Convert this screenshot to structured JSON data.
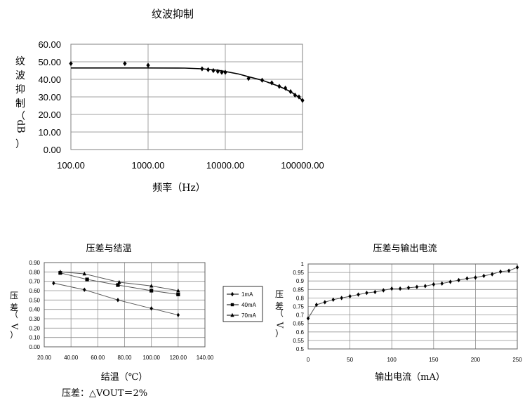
{
  "chart_data": [
    {
      "type": "scatter",
      "title": "纹波抑制",
      "ylabel": "纹波抑制（dB）",
      "xlabel": "频率（Hz）",
      "x_scale": "log",
      "xlim": [
        100,
        100000
      ],
      "ylim": [
        0,
        60
      ],
      "y_ticks": [
        "0.00",
        "10.00",
        "20.00",
        "30.00",
        "40.00",
        "50.00",
        "60.00"
      ],
      "x_ticks": [
        "100.00",
        "1000.00",
        "10000.00",
        "100000.00"
      ],
      "grid": true,
      "series": [
        {
          "points": [
            [
              100,
              49
            ],
            [
              500,
              49
            ],
            [
              1000,
              48
            ],
            [
              5000,
              46
            ],
            [
              6000,
              45.5
            ],
            [
              7000,
              45
            ],
            [
              8000,
              44.5
            ],
            [
              9000,
              44
            ],
            [
              10000,
              44
            ],
            [
              20000,
              40.5
            ],
            [
              30000,
              39.5
            ],
            [
              40000,
              38
            ],
            [
              50000,
              36
            ],
            [
              60000,
              35
            ],
            [
              70000,
              33
            ],
            [
              80000,
              31
            ],
            [
              90000,
              30
            ],
            [
              100000,
              28
            ]
          ]
        }
      ],
      "trend": [
        [
          100,
          46.5
        ],
        [
          1000,
          46.5
        ],
        [
          3000,
          46.4
        ],
        [
          5000,
          46
        ],
        [
          8000,
          45.2
        ],
        [
          10000,
          44.5
        ],
        [
          15000,
          43
        ],
        [
          20000,
          41.5
        ],
        [
          30000,
          39.5
        ],
        [
          50000,
          36
        ],
        [
          70000,
          33
        ],
        [
          85000,
          30.5
        ],
        [
          100000,
          28
        ]
      ]
    },
    {
      "type": "line",
      "title": "压差与结温",
      "ylabel": "压差（V）",
      "xlabel": "结温（℃）",
      "xlim": [
        20,
        140
      ],
      "ylim": [
        0,
        0.9
      ],
      "x_ticks": [
        "20.00",
        "40.00",
        "60.00",
        "80.00",
        "100.00",
        "120.00",
        "140.00"
      ],
      "y_ticks": [
        "0.00",
        "0.10",
        "0.20",
        "0.30",
        "0.40",
        "0.50",
        "0.60",
        "0.70",
        "0.80",
        "0.90"
      ],
      "grid": true,
      "legend_position": "right",
      "series": [
        {
          "name": "1mA",
          "marker": "diamond",
          "x": [
            27,
            50,
            75,
            100,
            120
          ],
          "values": [
            0.68,
            0.61,
            0.5,
            0.41,
            0.34
          ]
        },
        {
          "name": "40mA",
          "marker": "square",
          "x": [
            32,
            52,
            75,
            100,
            120
          ],
          "values": [
            0.79,
            0.72,
            0.66,
            0.6,
            0.56
          ]
        },
        {
          "name": "70mA",
          "marker": "triangle",
          "x": [
            32,
            50,
            76,
            100,
            120
          ],
          "values": [
            0.8,
            0.78,
            0.69,
            0.65,
            0.6
          ]
        }
      ]
    },
    {
      "type": "line",
      "title": "压差与输出电流",
      "ylabel": "压差（V）",
      "xlabel": "输出电流（mA）",
      "xlim": [
        0,
        250
      ],
      "ylim": [
        0.5,
        1
      ],
      "x_ticks": [
        "0",
        "50",
        "100",
        "150",
        "200",
        "250"
      ],
      "y_ticks": [
        "0.5",
        "0.55",
        "0.6",
        "0.65",
        "0.7",
        "0.75",
        "0.8",
        "0.85",
        "0.9",
        "0.95",
        "1"
      ],
      "grid": true,
      "series": [
        {
          "marker": "diamond",
          "x": [
            0,
            10,
            20,
            30,
            40,
            50,
            60,
            70,
            80,
            90,
            100,
            110,
            120,
            130,
            140,
            150,
            160,
            170,
            180,
            190,
            200,
            210,
            220,
            230,
            240,
            250
          ],
          "values": [
            0.68,
            0.76,
            0.775,
            0.79,
            0.8,
            0.81,
            0.82,
            0.83,
            0.835,
            0.845,
            0.855,
            0.855,
            0.86,
            0.865,
            0.87,
            0.88,
            0.885,
            0.895,
            0.905,
            0.915,
            0.92,
            0.93,
            0.94,
            0.955,
            0.96,
            0.98
          ]
        }
      ]
    }
  ],
  "footnote": "压差：△VOUT＝2%"
}
